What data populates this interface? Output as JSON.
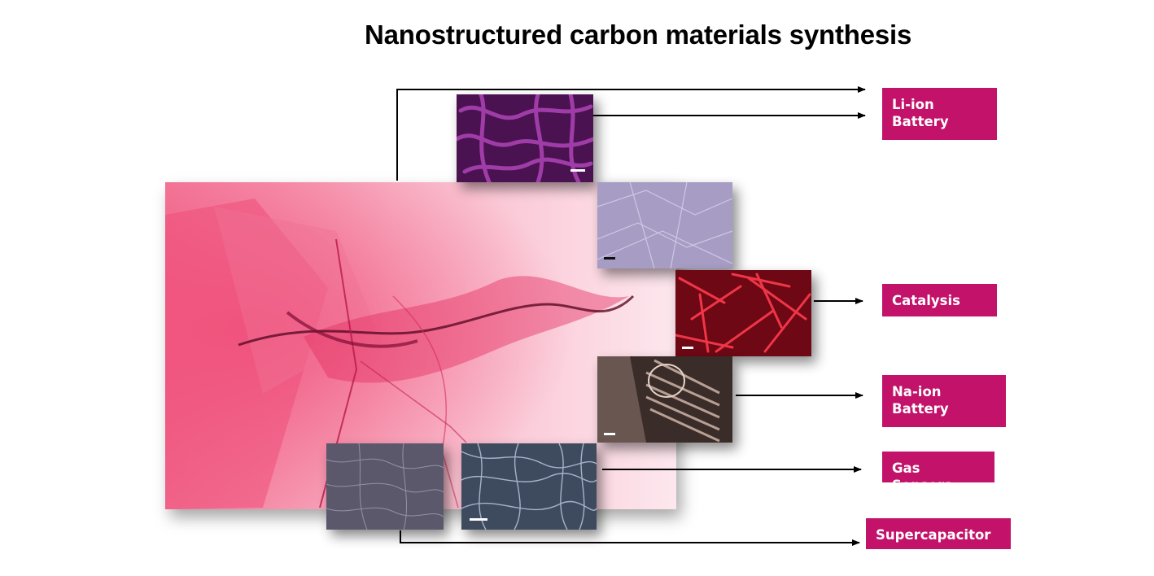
{
  "title": "Nanostructured carbon materials synthesis",
  "applications": [
    {
      "label": "Li-ion\nBattery"
    },
    {
      "label": "Catalysis"
    },
    {
      "label": "Na-ion\nBattery"
    },
    {
      "label": "Gas Sensors"
    },
    {
      "label": "Supercapacitor"
    }
  ],
  "colors": {
    "label_bg": "#c2126a",
    "main_image": "#e8386a",
    "purple_micrograph": "#8a2a8c",
    "lavender_micrograph": "#9a8fb8",
    "red_micrograph": "#c0122a",
    "brown_micrograph": "#6e5a50",
    "grey_micrograph": "#5e5a70",
    "blue_micrograph": "#7c8aa4"
  },
  "images": [
    {
      "name": "graphene-sheet-micrograph",
      "icon": "pink-graphene-veil"
    },
    {
      "name": "purple-fiber-micrograph",
      "icon": "tangled-fibers"
    },
    {
      "name": "lavender-sheet-micrograph",
      "icon": "wrinkled-film"
    },
    {
      "name": "red-crystal-micrograph",
      "icon": "needle-crystals"
    },
    {
      "name": "brown-tube-array-micrograph",
      "icon": "aligned-tubes"
    },
    {
      "name": "grey-film-micrograph",
      "icon": "rough-film"
    },
    {
      "name": "blue-network-micrograph",
      "icon": "fiber-network"
    }
  ]
}
